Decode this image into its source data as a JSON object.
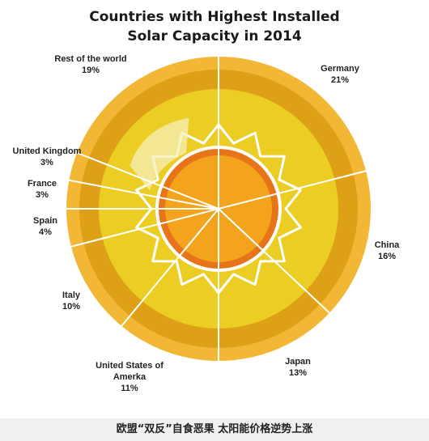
{
  "chart_data": {
    "type": "pie",
    "title_line1": "Countries with Highest Installed",
    "title_line2": "Solar Capacity in 2014",
    "slices": [
      {
        "label": "Germany",
        "value": 21,
        "display": "21%"
      },
      {
        "label": "China",
        "value": 16,
        "display": "16%"
      },
      {
        "label": "Japan",
        "value": 13,
        "display": "13%"
      },
      {
        "label": "United States of Amerka",
        "value": 11,
        "display": "11%"
      },
      {
        "label": "Italy",
        "value": 10,
        "display": "10%"
      },
      {
        "label": "Spain",
        "value": 4,
        "display": "4%"
      },
      {
        "label": "France",
        "value": 3,
        "display": "3%"
      },
      {
        "label": "United Kingdom",
        "value": 3,
        "display": "3%"
      },
      {
        "label": "Rest of the world",
        "value": 19,
        "display": "19%"
      }
    ],
    "colors": {
      "outer_ring": "#f2b735",
      "dark_ring": "#dea017",
      "main_fill": "#ebcd24",
      "sun_body": "#f3a41c",
      "sun_ring": "#e8741a",
      "divider": "#ffffff",
      "highlight": "#f7efb8"
    }
  },
  "caption": "欧盟“双反”自食恶果 太阳能价格逆势上涨"
}
